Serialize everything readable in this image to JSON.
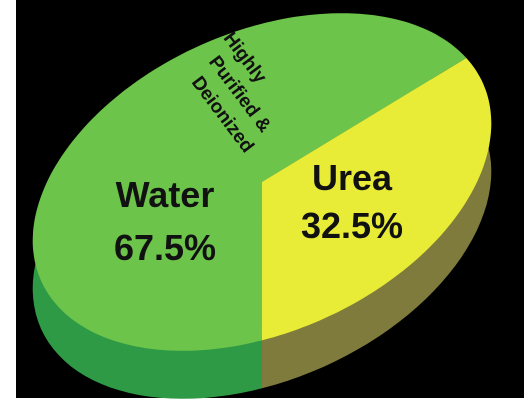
{
  "colors": {
    "background": "#000000",
    "water_top": "#6cc44a",
    "water_side": "#2f9a45",
    "urea_top": "#e8ec36",
    "urea_side": "#7f7b3c"
  },
  "chart_data": {
    "type": "pie",
    "style": "3d",
    "title": "",
    "slices": [
      {
        "label": "Urea",
        "value_label": "32.5%",
        "value": 32.5,
        "color": "#e8ec36"
      },
      {
        "label": "Water",
        "value_label": "67.5%",
        "value": 67.5,
        "color": "#6cc44a"
      }
    ],
    "annotation": [
      "Highly",
      "Purified &",
      "Deionized"
    ]
  }
}
